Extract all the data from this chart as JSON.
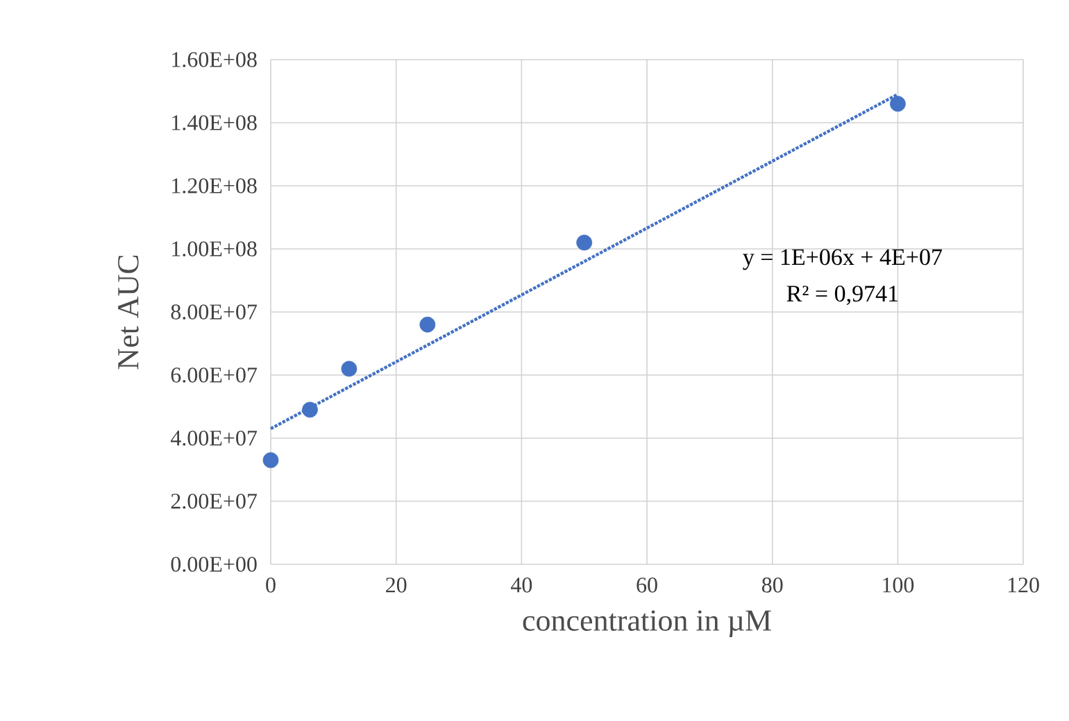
{
  "chart_data": {
    "type": "scatter",
    "xlabel": "concentration in µM",
    "ylabel": "Net AUC",
    "series": [
      {
        "marker": "circle",
        "color": "#4472c4",
        "x": [
          0,
          6.25,
          12.5,
          25,
          50,
          100
        ],
        "values": [
          33000000,
          49000000,
          62000000,
          76000000,
          102000000,
          146000000
        ]
      },
      {
        "type": "line",
        "line_style": "dotted",
        "color": "#4472c4",
        "x": [
          0,
          100
        ],
        "values": [
          43000000,
          149000000
        ]
      }
    ],
    "annotations": [
      "y = 1E+06x + 4E+07",
      "R² = 0,9741"
    ],
    "xlim": [
      0,
      120
    ],
    "xticks": [
      0,
      20,
      40,
      60,
      80,
      100,
      120
    ],
    "ylim": [
      0,
      160000000
    ],
    "yticks": [
      {
        "value": 0,
        "label": "0.00E+00"
      },
      {
        "value": 20000000,
        "label": "2.00E+07"
      },
      {
        "value": 40000000,
        "label": "4.00E+07"
      },
      {
        "value": 60000000,
        "label": "6.00E+07"
      },
      {
        "value": 80000000,
        "label": "8.00E+07"
      },
      {
        "value": 100000000,
        "label": "1.00E+08"
      },
      {
        "value": 120000000,
        "label": "1.20E+08"
      },
      {
        "value": 140000000,
        "label": "1.40E+08"
      },
      {
        "value": 160000000,
        "label": "1.60E+08"
      }
    ],
    "grid": true
  }
}
